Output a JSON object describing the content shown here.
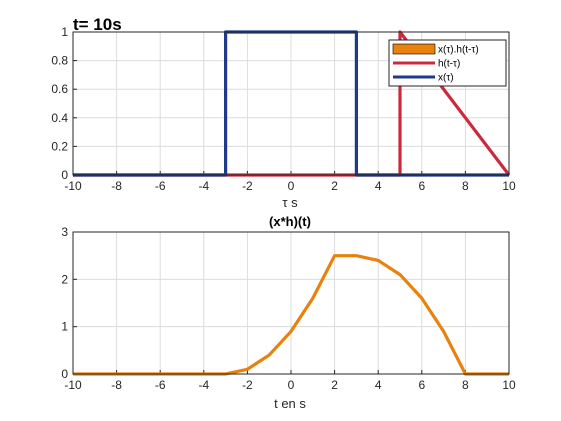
{
  "chart_data": [
    {
      "type": "line",
      "annotation": "t= 10s",
      "xlabel": "τ s",
      "ylabel": "",
      "xlim": [
        -10,
        10
      ],
      "ylim": [
        0,
        1
      ],
      "xticks": [
        "-10",
        "-8",
        "-6",
        "-4",
        "-2",
        "0",
        "2",
        "4",
        "6",
        "8",
        "10"
      ],
      "yticks": [
        "0",
        "0.2",
        "0.4",
        "0.6",
        "0.8",
        "1"
      ],
      "grid": true,
      "legend_position": "top-right",
      "series": [
        {
          "name": "x(τ).h(t-τ)",
          "color": "#e8820c",
          "style": "filled-area",
          "x": [],
          "y": []
        },
        {
          "name": "h(t-τ)",
          "color": "#cc2a3c",
          "x": [
            -10,
            5,
            5,
            10
          ],
          "y": [
            0,
            0,
            1,
            0
          ]
        },
        {
          "name": "x(τ)",
          "color": "#1f3a8a",
          "x": [
            -10,
            -3,
            -3,
            3,
            3,
            10
          ],
          "y": [
            0,
            0,
            1,
            1,
            0,
            0
          ]
        }
      ]
    },
    {
      "type": "line",
      "title": "(x*h)(t)",
      "xlabel": "t en s",
      "ylabel": "",
      "xlim": [
        -10,
        10
      ],
      "ylim": [
        0,
        3
      ],
      "xticks": [
        "-10",
        "-8",
        "-6",
        "-4",
        "-2",
        "0",
        "2",
        "4",
        "6",
        "8",
        "10"
      ],
      "yticks": [
        "0",
        "1",
        "2",
        "3"
      ],
      "grid": true,
      "series": [
        {
          "color": "#e8820c",
          "x": [
            -10,
            -3,
            -2,
            -1,
            0,
            1,
            2,
            3,
            4,
            5,
            6,
            7,
            8,
            10
          ],
          "y": [
            0,
            0,
            0.1,
            0.4,
            0.9,
            1.6,
            2.5,
            2.5,
            2.4,
            2.1,
            1.6,
            0.9,
            0,
            0
          ]
        }
      ]
    }
  ]
}
